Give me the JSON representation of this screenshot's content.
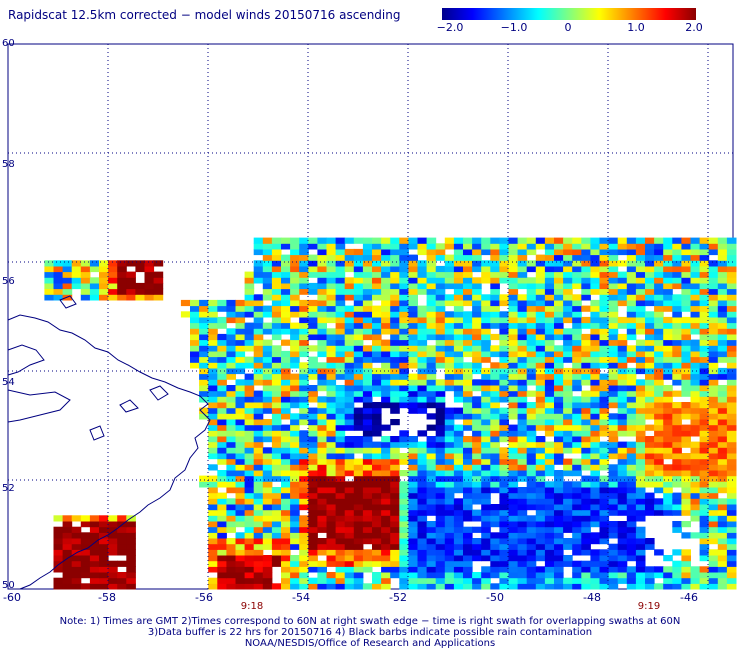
{
  "title": "Rapidscat 12.5km corrected − model winds 20150716 ascending",
  "colorbar": {
    "ticks": [
      "−2.0",
      "−1.0",
      "0",
      "1.0",
      "2.0"
    ],
    "tick_values": [
      -2.0,
      -1.0,
      0,
      1.0,
      2.0
    ],
    "colors": [
      "#00008b",
      "#0000ff",
      "#0080ff",
      "#00ffff",
      "#80ff80",
      "#ffff00",
      "#ff8000",
      "#ff0000",
      "#8b0000"
    ]
  },
  "map": {
    "lon_range": [
      -60,
      -45.5
    ],
    "lat_range": [
      50,
      60
    ],
    "lat_labels": [
      "60",
      "58",
      "56",
      "54",
      "52",
      "50"
    ],
    "lon_labels": [
      "-60",
      "-58",
      "-56",
      "-54",
      "-52",
      "-50",
      "-48",
      "-46"
    ],
    "gridlines": "dotted",
    "coastline_color": "#000080"
  },
  "swath_times": [
    "9:18",
    "9:19"
  ],
  "notes": [
    "Note: 1) Times are GMT 2)Times correspond to 60N at right swath edge − time is right swath for overlapping swaths at 60N",
    "3)Data buffer is 22 hrs for 20150716 4) Black barbs indicate possible rain contamination",
    "NOAA/NESDIS/Office of Research and Applications"
  ],
  "chart_data": {
    "type": "heatmap",
    "title": "Rapidscat 12.5km corrected − model winds 20150716 ascending",
    "variable": "wind speed difference (corrected − model)",
    "colorbar_range": [
      -2.0,
      2.0
    ],
    "x_axis": "longitude",
    "y_axis": "latitude",
    "xlim": [
      -60,
      -45.5
    ],
    "ylim": [
      50,
      60
    ],
    "regions": [
      {
        "description": "strong positive (dark red)",
        "lon": [
          -54,
          -52.3
        ],
        "lat": [
          50.7,
          52.0
        ],
        "value": 2.0
      },
      {
        "description": "strong positive (dark red)",
        "lon": [
          -59.2,
          -57.6
        ],
        "lat": [
          50.0,
          51.2
        ],
        "value": 2.0
      },
      {
        "description": "strong positive (dark red)",
        "lon": [
          -57.9,
          -57.0
        ],
        "lat": [
          55.4,
          56.0
        ],
        "value": 2.0
      },
      {
        "description": "strong positive (dark red)",
        "lon": [
          -55.9,
          -54.7
        ],
        "lat": [
          50.0,
          50.6
        ],
        "value": 1.8
      },
      {
        "description": "strong negative (dark blue)",
        "lon": [
          -53.2,
          -51.3
        ],
        "lat": [
          52.8,
          53.4
        ],
        "value": -1.8
      },
      {
        "description": "negative (blue)",
        "lon": [
          -52,
          -47
        ],
        "lat": [
          50.3,
          51.8
        ],
        "value": -1.3
      },
      {
        "description": "positive (yellow/orange)",
        "lon": [
          -47.3,
          -45.6
        ],
        "lat": [
          52.0,
          53.4
        ],
        "value": 1.0
      }
    ]
  }
}
